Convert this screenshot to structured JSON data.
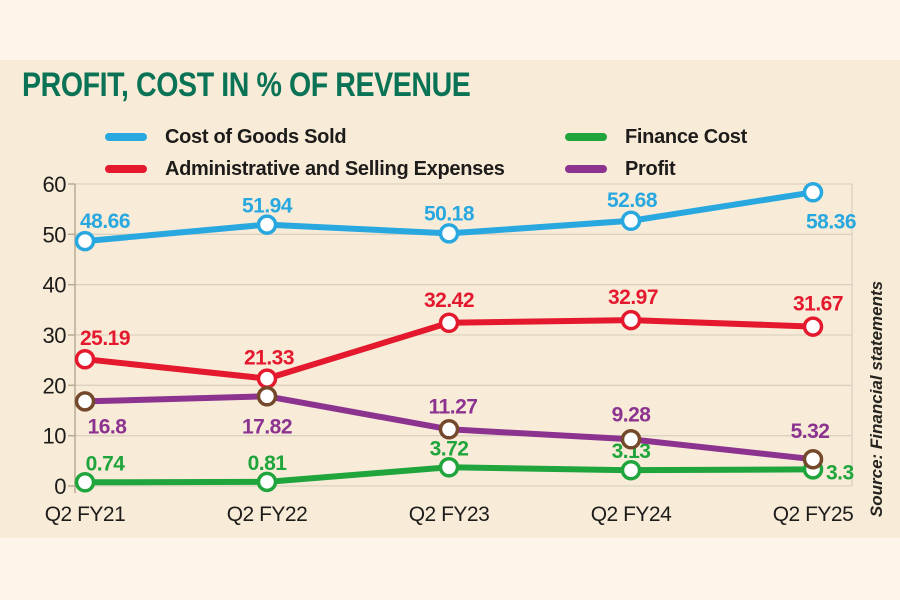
{
  "title": "PROFIT, COST IN % OF REVENUE",
  "source_note": "Source: Financial statements",
  "colors": {
    "background_outer": "#fdf5e9",
    "background_card": "#f8ecd9",
    "title": "#0b7355",
    "text": "#1d1c1a",
    "grid": "#dbd1bf",
    "axis": "#b9ac95"
  },
  "chart_data": {
    "type": "line",
    "title": "PROFIT, COST IN % OF REVENUE",
    "categories": [
      "Q2 FY21",
      "Q2 FY22",
      "Q2 FY23",
      "Q2 FY24",
      "Q2 FY25"
    ],
    "xlabel": "",
    "ylabel": "",
    "ylim": [
      0,
      60
    ],
    "yticks": [
      0,
      10,
      20,
      30,
      40,
      50,
      60
    ],
    "grid": "horizontal",
    "legend_position": "top",
    "marker": "open-circle",
    "series": [
      {
        "name": "Cost of Goods Sold",
        "color": "#29a8e0",
        "marker_stroke": "#29a8e0",
        "values": [
          48.66,
          51.94,
          50.18,
          52.68,
          58.36
        ],
        "label_offsets": [
          [
            20,
            -13
          ],
          [
            0,
            -12
          ],
          [
            0,
            -13
          ],
          [
            1,
            -14
          ],
          [
            18,
            36
          ]
        ]
      },
      {
        "name": "Administrative and Selling Expenses",
        "color": "#e5192e",
        "marker_stroke": "#e5192e",
        "values": [
          25.19,
          21.33,
          32.42,
          32.97,
          31.67
        ],
        "label_offsets": [
          [
            20,
            -14
          ],
          [
            2,
            -14
          ],
          [
            0,
            -16
          ],
          [
            2,
            -16
          ],
          [
            5,
            -16
          ]
        ]
      },
      {
        "name": "Finance Cost",
        "color": "#1fa53c",
        "marker_stroke": "#1fa53c",
        "values": [
          0.74,
          0.81,
          3.72,
          3.13,
          3.3
        ],
        "label_offsets": [
          [
            20,
            -12
          ],
          [
            0,
            -12
          ],
          [
            0,
            -12
          ],
          [
            0,
            -12
          ],
          [
            13,
            10,
            "start"
          ]
        ]
      },
      {
        "name": "Profit",
        "color": "#8c3390",
        "marker_stroke": "#74482a",
        "values": [
          16.8,
          17.82,
          11.27,
          9.28,
          5.32
        ],
        "label_offsets": [
          [
            22,
            32
          ],
          [
            0,
            37
          ],
          [
            4,
            -16
          ],
          [
            0,
            -18
          ],
          [
            -3,
            -21
          ]
        ]
      }
    ]
  }
}
